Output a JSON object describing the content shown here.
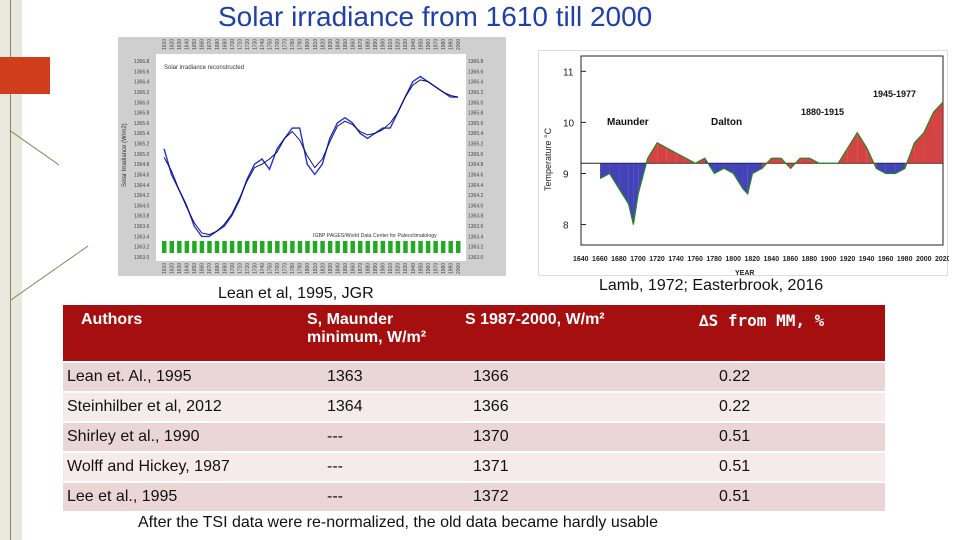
{
  "title": "Solar irradiance from 1610 till 2000",
  "left_chart": {
    "inner_title": "Solar irradiance reconstructed",
    "ylabel": "Solar Irradiance (W/m2)",
    "source_note": "IGBP PAGES/World Data Center for Paleoclimatology",
    "caption": "Lean et al, 1995, JGR",
    "line_color": "#2233cc",
    "bar_color": "#22aa22"
  },
  "right_chart": {
    "ylabel": "Temperature °C",
    "xlabel": "YEAR",
    "annotations": [
      "Maunder",
      "Dalton",
      "1880-1915",
      "1945-1977"
    ],
    "caption": "Lamb, 1972; Easterbrook, 2016",
    "warm_color": "#cc2222",
    "cold_color": "#2222aa",
    "line_color": "#228822"
  },
  "chart_data": [
    {
      "type": "line",
      "title": "Solar irradiance reconstructed",
      "ylabel": "Solar Irradiance (W/m2)",
      "xlabel": "",
      "xlim": [
        1610,
        2000
      ],
      "ylim": [
        1363.0,
        1366.8
      ],
      "x_ticks": [
        "1610",
        "1620",
        "1630",
        "1640",
        "1650",
        "1660",
        "1670",
        "1680",
        "1690",
        "1700",
        "1710",
        "1720",
        "1730",
        "1740",
        "1750",
        "1760",
        "1770",
        "1780",
        "1790",
        "1800",
        "1810",
        "1820",
        "1830",
        "1840",
        "1850",
        "1860",
        "1870",
        "1880",
        "1890",
        "1900",
        "1910",
        "1920",
        "1930",
        "1940",
        "1950",
        "1960",
        "1970",
        "1980",
        "1990",
        "2000"
      ],
      "y_ticks": [
        "1366.8",
        "1366.6",
        "1366.4",
        "1366.2",
        "1366.0",
        "1365.8",
        "1365.6",
        "1365.4",
        "1365.2",
        "1365.0",
        "1364.8",
        "1364.6",
        "1364.4",
        "1364.2",
        "1364.0",
        "1363.8",
        "1363.6",
        "1363.4",
        "1363.2",
        "1363.0"
      ],
      "series": [
        {
          "x": [
            1610,
            1620,
            1630,
            1640,
            1650,
            1660,
            1670,
            1680,
            1690,
            1700,
            1710,
            1720,
            1730,
            1740,
            1750,
            1760,
            1770,
            1780,
            1790,
            1800,
            1810,
            1820,
            1830,
            1840,
            1850,
            1860,
            1870,
            1880,
            1890,
            1900,
            1910,
            1920,
            1930,
            1940,
            1950,
            1960,
            1970,
            1980,
            1990,
            2000
          ],
          "y": [
            1365.1,
            1364.6,
            1364.3,
            1364.0,
            1363.6,
            1363.4,
            1363.4,
            1363.5,
            1363.6,
            1363.8,
            1364.1,
            1364.5,
            1364.8,
            1364.9,
            1364.7,
            1365.1,
            1365.3,
            1365.5,
            1365.5,
            1364.8,
            1364.6,
            1364.8,
            1365.3,
            1365.6,
            1365.7,
            1365.6,
            1365.4,
            1365.3,
            1365.4,
            1365.5,
            1365.5,
            1365.8,
            1366.1,
            1366.4,
            1366.5,
            1366.4,
            1366.3,
            1366.2,
            1366.1,
            1366.1
          ]
        }
      ]
    },
    {
      "type": "area",
      "title": "",
      "xlabel": "YEAR",
      "ylabel": "Temperature °C",
      "xlim": [
        1640,
        2020
      ],
      "ylim": [
        7.6,
        11.3
      ],
      "x_ticks": [
        "1640",
        "1660",
        "1680",
        "1700",
        "1720",
        "1740",
        "1760",
        "1780",
        "1800",
        "1820",
        "1840",
        "1860",
        "1880",
        "1900",
        "1920",
        "1940",
        "1960",
        "1980",
        "2000",
        "2020"
      ],
      "y_ticks": [
        "11",
        "10",
        "9",
        "8"
      ],
      "baseline": 9.2,
      "series": [
        {
          "x": [
            1660,
            1670,
            1680,
            1690,
            1695,
            1700,
            1710,
            1720,
            1730,
            1740,
            1750,
            1760,
            1770,
            1780,
            1790,
            1800,
            1810,
            1815,
            1820,
            1830,
            1840,
            1850,
            1860,
            1870,
            1880,
            1890,
            1900,
            1910,
            1920,
            1930,
            1940,
            1950,
            1960,
            1970,
            1980,
            1990,
            2000,
            2010,
            2020
          ],
          "y": [
            8.9,
            9.0,
            8.7,
            8.4,
            8.0,
            8.6,
            9.3,
            9.6,
            9.5,
            9.4,
            9.3,
            9.2,
            9.3,
            9.0,
            9.1,
            9.0,
            8.7,
            8.6,
            9.0,
            9.1,
            9.3,
            9.3,
            9.1,
            9.3,
            9.3,
            9.2,
            9.2,
            9.2,
            9.5,
            9.8,
            9.5,
            9.1,
            9.0,
            9.0,
            9.1,
            9.6,
            9.8,
            10.2,
            10.4
          ]
        }
      ]
    }
  ],
  "table": {
    "headers": [
      "Authors",
      "S,  Maunder minimum, W/m²",
      "S 1987-2000, W/m²",
      "∆S  from MM, %"
    ],
    "rows": [
      [
        "Lean et. Al., 1995",
        "1363",
        "1366",
        "0.22"
      ],
      [
        "Steinhilber et al, 2012",
        "1364",
        "1366",
        "0.22"
      ],
      [
        "Shirley et al., 1990",
        "---",
        "1370",
        "0.51"
      ],
      [
        "Wolff and Hickey, 1987",
        "---",
        "1371",
        "0.51"
      ],
      [
        "Lee et al., 1995",
        "---",
        "1372",
        "0.51"
      ]
    ]
  },
  "footer": "After the  TSI data were re-normalized, the old data became hardly usable"
}
